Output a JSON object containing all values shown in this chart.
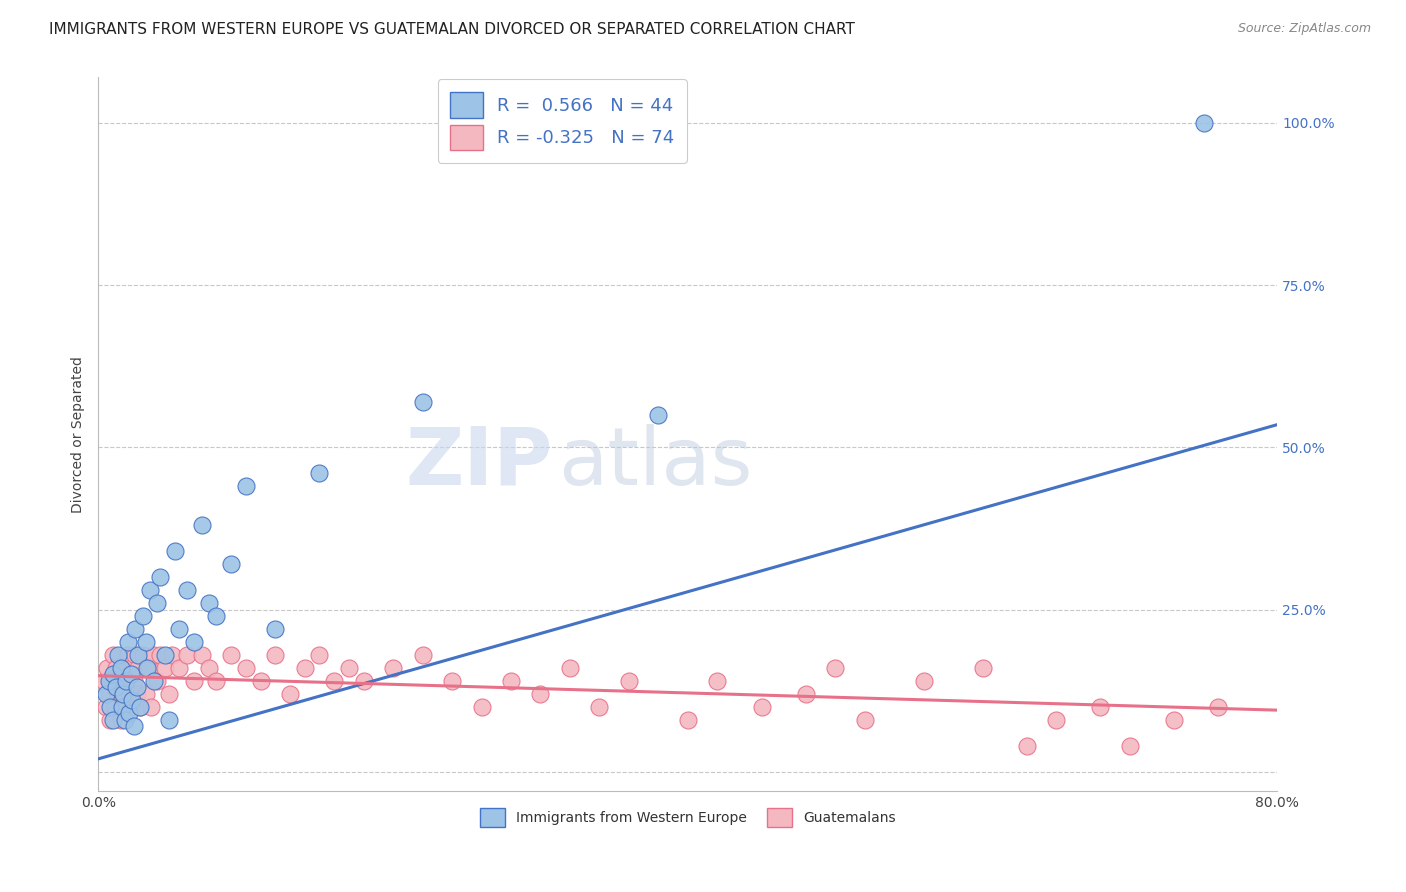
{
  "title": "IMMIGRANTS FROM WESTERN EUROPE VS GUATEMALAN DIVORCED OR SEPARATED CORRELATION CHART",
  "source": "Source: ZipAtlas.com",
  "ylabel": "Divorced or Separated",
  "xlim": [
    0.0,
    0.8
  ],
  "ylim": [
    -0.03,
    1.07
  ],
  "yticks": [
    0.0,
    0.25,
    0.5,
    0.75,
    1.0
  ],
  "xticks": [
    0.0,
    0.2,
    0.4,
    0.6,
    0.8
  ],
  "blue_scatter_x": [
    0.005,
    0.007,
    0.008,
    0.01,
    0.01,
    0.012,
    0.013,
    0.015,
    0.016,
    0.017,
    0.018,
    0.019,
    0.02,
    0.021,
    0.022,
    0.023,
    0.024,
    0.025,
    0.026,
    0.027,
    0.028,
    0.03,
    0.032,
    0.033,
    0.035,
    0.038,
    0.04,
    0.042,
    0.045,
    0.048,
    0.052,
    0.055,
    0.06,
    0.065,
    0.07,
    0.075,
    0.08,
    0.09,
    0.1,
    0.12,
    0.15,
    0.22,
    0.38,
    0.75
  ],
  "blue_scatter_y": [
    0.12,
    0.14,
    0.1,
    0.15,
    0.08,
    0.13,
    0.18,
    0.16,
    0.1,
    0.12,
    0.08,
    0.14,
    0.2,
    0.09,
    0.15,
    0.11,
    0.07,
    0.22,
    0.13,
    0.18,
    0.1,
    0.24,
    0.2,
    0.16,
    0.28,
    0.14,
    0.26,
    0.3,
    0.18,
    0.08,
    0.34,
    0.22,
    0.28,
    0.2,
    0.38,
    0.26,
    0.24,
    0.32,
    0.44,
    0.22,
    0.46,
    0.57,
    0.55,
    1.0
  ],
  "pink_scatter_x": [
    0.004,
    0.005,
    0.006,
    0.007,
    0.008,
    0.009,
    0.01,
    0.011,
    0.012,
    0.013,
    0.014,
    0.015,
    0.016,
    0.017,
    0.018,
    0.019,
    0.02,
    0.021,
    0.022,
    0.023,
    0.024,
    0.025,
    0.026,
    0.027,
    0.028,
    0.03,
    0.032,
    0.034,
    0.036,
    0.038,
    0.04,
    0.042,
    0.045,
    0.048,
    0.05,
    0.055,
    0.06,
    0.065,
    0.07,
    0.075,
    0.08,
    0.09,
    0.1,
    0.11,
    0.12,
    0.13,
    0.14,
    0.15,
    0.16,
    0.17,
    0.18,
    0.2,
    0.22,
    0.24,
    0.26,
    0.28,
    0.3,
    0.32,
    0.34,
    0.36,
    0.4,
    0.42,
    0.45,
    0.48,
    0.5,
    0.52,
    0.56,
    0.6,
    0.63,
    0.65,
    0.68,
    0.7,
    0.73,
    0.76
  ],
  "pink_scatter_y": [
    0.14,
    0.1,
    0.16,
    0.12,
    0.08,
    0.14,
    0.18,
    0.1,
    0.16,
    0.12,
    0.14,
    0.08,
    0.12,
    0.16,
    0.1,
    0.14,
    0.18,
    0.12,
    0.16,
    0.1,
    0.14,
    0.18,
    0.12,
    0.16,
    0.1,
    0.18,
    0.12,
    0.16,
    0.1,
    0.18,
    0.14,
    0.18,
    0.16,
    0.12,
    0.18,
    0.16,
    0.18,
    0.14,
    0.18,
    0.16,
    0.14,
    0.18,
    0.16,
    0.14,
    0.18,
    0.12,
    0.16,
    0.18,
    0.14,
    0.16,
    0.14,
    0.16,
    0.18,
    0.14,
    0.1,
    0.14,
    0.12,
    0.16,
    0.1,
    0.14,
    0.08,
    0.14,
    0.1,
    0.12,
    0.16,
    0.08,
    0.14,
    0.16,
    0.04,
    0.08,
    0.1,
    0.04,
    0.08,
    0.1
  ],
  "blue_line_x": [
    0.0,
    0.8
  ],
  "blue_line_y": [
    0.02,
    0.535
  ],
  "pink_line_x": [
    0.0,
    0.8
  ],
  "pink_line_y": [
    0.148,
    0.095
  ],
  "blue_color": "#4472c4",
  "blue_scatter_color": "#9dc3e6",
  "pink_color": "#e8718a",
  "pink_scatter_color": "#f4b8c1",
  "watermark_zip": "ZIP",
  "watermark_atlas": "atlas",
  "grid_color": "#c8c8c8",
  "title_fontsize": 11,
  "axis_label_fontsize": 10,
  "tick_fontsize": 10,
  "right_tick_color": "#4472c4"
}
